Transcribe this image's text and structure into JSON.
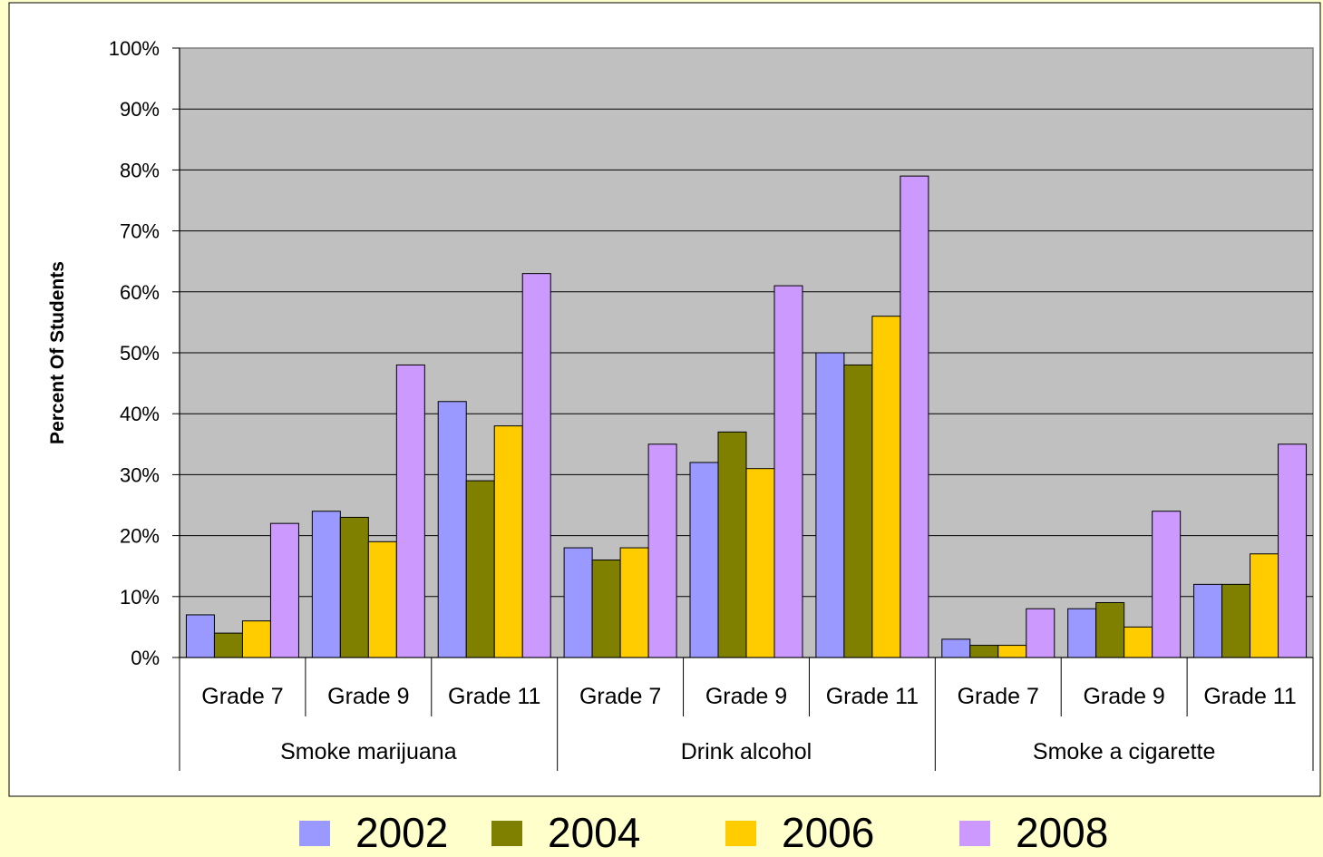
{
  "chart_data": {
    "type": "bar",
    "ylabel": "Percent Of Students",
    "ylim": [
      0,
      100
    ],
    "yticks": [
      "0%",
      "10%",
      "20%",
      "30%",
      "40%",
      "50%",
      "60%",
      "70%",
      "80%",
      "90%",
      "100%"
    ],
    "groups": [
      {
        "name": "Smoke marijuana",
        "categories": [
          "Grade 7",
          "Grade 9",
          "Grade 11"
        ]
      },
      {
        "name": "Drink alcohol",
        "categories": [
          "Grade 7",
          "Grade 9",
          "Grade 11"
        ]
      },
      {
        "name": "Smoke a cigarette",
        "categories": [
          "Grade 7",
          "Grade 9",
          "Grade 11"
        ]
      }
    ],
    "series": [
      {
        "name": "2002",
        "color": "#9999ff",
        "values": [
          7,
          24,
          42,
          18,
          32,
          50,
          3,
          8,
          12
        ]
      },
      {
        "name": "2004",
        "color": "#808000",
        "values": [
          4,
          23,
          29,
          16,
          37,
          48,
          2,
          9,
          12
        ]
      },
      {
        "name": "2006",
        "color": "#ffcc00",
        "values": [
          6,
          19,
          38,
          18,
          31,
          56,
          2,
          5,
          17
        ]
      },
      {
        "name": "2008",
        "color": "#cc99ff",
        "values": [
          22,
          48,
          63,
          35,
          61,
          79,
          8,
          24,
          35
        ]
      }
    ],
    "grid": true,
    "legend_position": "bottom",
    "plot_background": "#c0c0c0"
  }
}
